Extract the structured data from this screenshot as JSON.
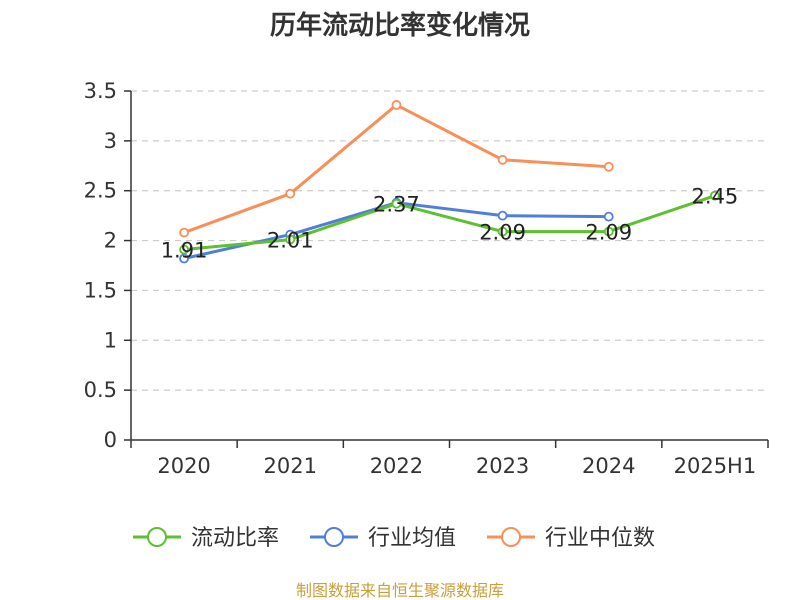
{
  "chart_data": {
    "type": "line",
    "title": "历年流动比率变化情况",
    "categories": [
      "2020",
      "2021",
      "2022",
      "2023",
      "2024",
      "2025H1"
    ],
    "ylim": [
      0,
      3.5
    ],
    "yticks": [
      "0",
      "0.5",
      "1",
      "1.5",
      "2",
      "2.5",
      "3",
      "3.5"
    ],
    "grid": true,
    "legend_position": "bottom",
    "series": [
      {
        "name": "流动比率",
        "color": "#5cc02f",
        "values": [
          1.91,
          2.01,
          2.37,
          2.09,
          2.09,
          2.45
        ],
        "labels": [
          "1.91",
          "2.01",
          "2.37",
          "2.09",
          "2.09",
          "2.45"
        ]
      },
      {
        "name": "行业均值",
        "color": "#4f7fdb",
        "values": [
          1.82,
          2.06,
          2.38,
          2.25,
          2.24,
          null
        ]
      },
      {
        "name": "行业中位数",
        "color": "#f98e57",
        "values": [
          2.08,
          2.47,
          3.36,
          2.81,
          2.74,
          null
        ]
      }
    ]
  },
  "source": {
    "text": "制图数据来自恒生聚源数据库",
    "color": "#c8a03c"
  }
}
